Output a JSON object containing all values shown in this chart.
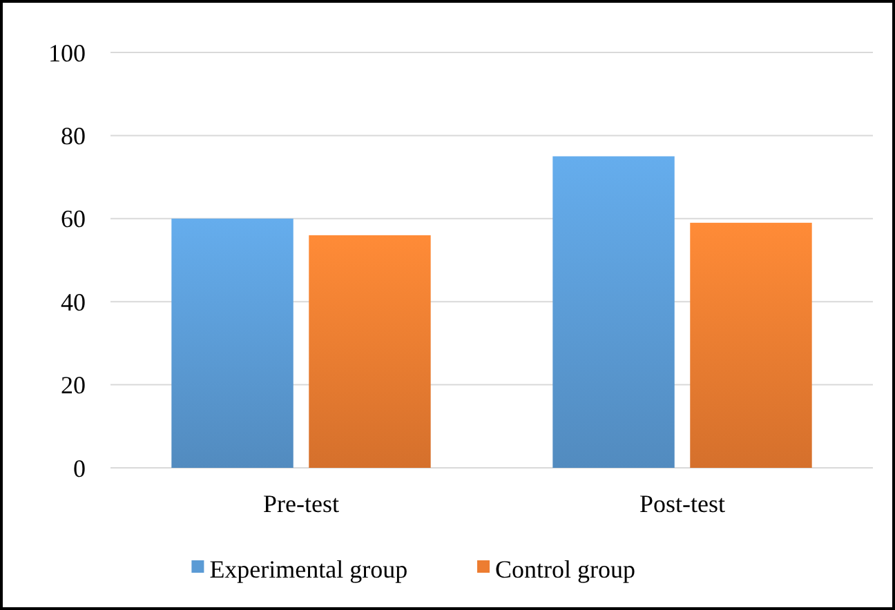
{
  "chart_data": {
    "type": "bar",
    "categories": [
      "Pre-test",
      "Post-test"
    ],
    "series": [
      {
        "name": "Experimental group",
        "color": "#5b9bd5",
        "values": [
          60,
          75
        ]
      },
      {
        "name": "Control group",
        "color": "#ed7d31",
        "values": [
          56,
          59
        ]
      }
    ],
    "ylim": [
      0,
      100
    ],
    "yticks": [
      0,
      20,
      40,
      60,
      80,
      100
    ],
    "grid": "y",
    "legend": "bottom"
  }
}
